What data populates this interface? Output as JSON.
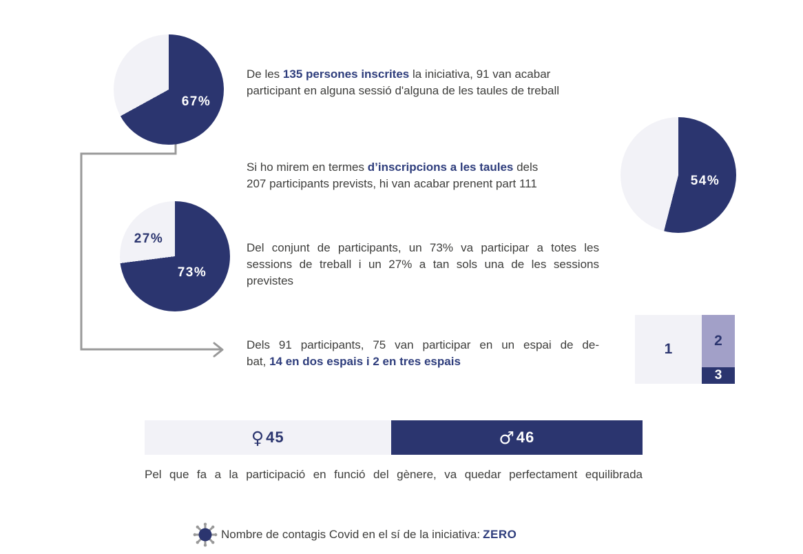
{
  "colors": {
    "navy": "#2b356f",
    "navy_text": "#2e3d7c",
    "light": "#f2f2f7",
    "purple": "#a2a0c8",
    "gray": "#999999",
    "body_text": "#3d3d3b",
    "white": "#ffffff"
  },
  "chart_data": [
    {
      "type": "pie",
      "name": "participacio-inscrits",
      "values": [
        67,
        33
      ],
      "labels": [
        "67%",
        ""
      ],
      "slice_colors": [
        "#2b356f",
        "#f2f2f7"
      ],
      "note": "91 de 135 persones inscrites van participar",
      "start": "top, clockwise"
    },
    {
      "type": "pie",
      "name": "inscripcions-taules",
      "values": [
        54,
        46
      ],
      "labels": [
        "54%",
        ""
      ],
      "slice_colors": [
        "#2b356f",
        "#f2f2f7"
      ],
      "note": "111 de 207 inscripcions previstes",
      "start": "top, clockwise"
    },
    {
      "type": "pie",
      "name": "assistencia-sessions",
      "values": [
        73,
        27
      ],
      "labels": [
        "73%",
        "27%"
      ],
      "slice_colors": [
        "#2b356f",
        "#f2f2f7"
      ],
      "note": "73% totes les sessions, 27% una sessió",
      "start": "top, clockwise"
    },
    {
      "type": "table",
      "name": "espais-de-debat",
      "categories": [
        "1",
        "2",
        "3"
      ],
      "values": [
        75,
        14,
        2
      ],
      "note": "participants per nombre d'espais de debat (75 en un, 14 en dos, 2 en tres)"
    },
    {
      "type": "bar",
      "name": "participacio-genere",
      "categories": [
        "♀",
        "♂"
      ],
      "values": [
        45,
        46
      ],
      "note": "barra horitzontal apilada, dones vs homes"
    }
  ],
  "paragraphs": {
    "p1": {
      "lines": [
        {
          "justify": false,
          "segments": [
            {
              "t": "De les ",
              "b": false
            },
            {
              "t": "135 persones inscrites",
              "b": true
            },
            {
              "t": " la iniciativa, 91 van acabar",
              "b": false
            }
          ]
        },
        {
          "justify": false,
          "segments": [
            {
              "t": "participant en alguna sessió d'alguna de les taules de treball",
              "b": false
            }
          ]
        }
      ]
    },
    "p2": {
      "lines": [
        {
          "justify": false,
          "segments": [
            {
              "t": "Si ho mirem en termes ",
              "b": false
            },
            {
              "t": "d’inscripcions a les taules",
              "b": true
            },
            {
              "t": " dels",
              "b": false
            }
          ]
        },
        {
          "justify": false,
          "segments": [
            {
              "t": "207 participants prevists, hi van acabar prenent part 111",
              "b": false
            }
          ]
        }
      ]
    },
    "p3": {
      "lines": [
        {
          "justify": true,
          "segments": [
            {
              "t": "Del conjunt de participants, un 73% va participar a totes les",
              "b": false
            }
          ]
        },
        {
          "justify": true,
          "segments": [
            {
              "t": "sessions de treball i un 27% a tan sols una de les sessions",
              "b": false
            }
          ]
        },
        {
          "justify": false,
          "segments": [
            {
              "t": "previstes",
              "b": false
            }
          ]
        }
      ]
    },
    "p4": {
      "lines": [
        {
          "justify": true,
          "segments": [
            {
              "t": "Dels 91 participants, 75 van participar en un espai de de-",
              "b": false
            }
          ]
        },
        {
          "justify": false,
          "segments": [
            {
              "t": "bat, ",
              "b": false
            },
            {
              "t": "14 en dos espais i 2 en tres espais",
              "b": true
            }
          ]
        }
      ]
    }
  },
  "caption": "Pel que fa a la participació en funció del gènere, va quedar perfectament equilibrada",
  "covid": {
    "prefix": "Nombre de contagis Covid en el sí de la iniciativa: ",
    "zero": "ZERO"
  }
}
